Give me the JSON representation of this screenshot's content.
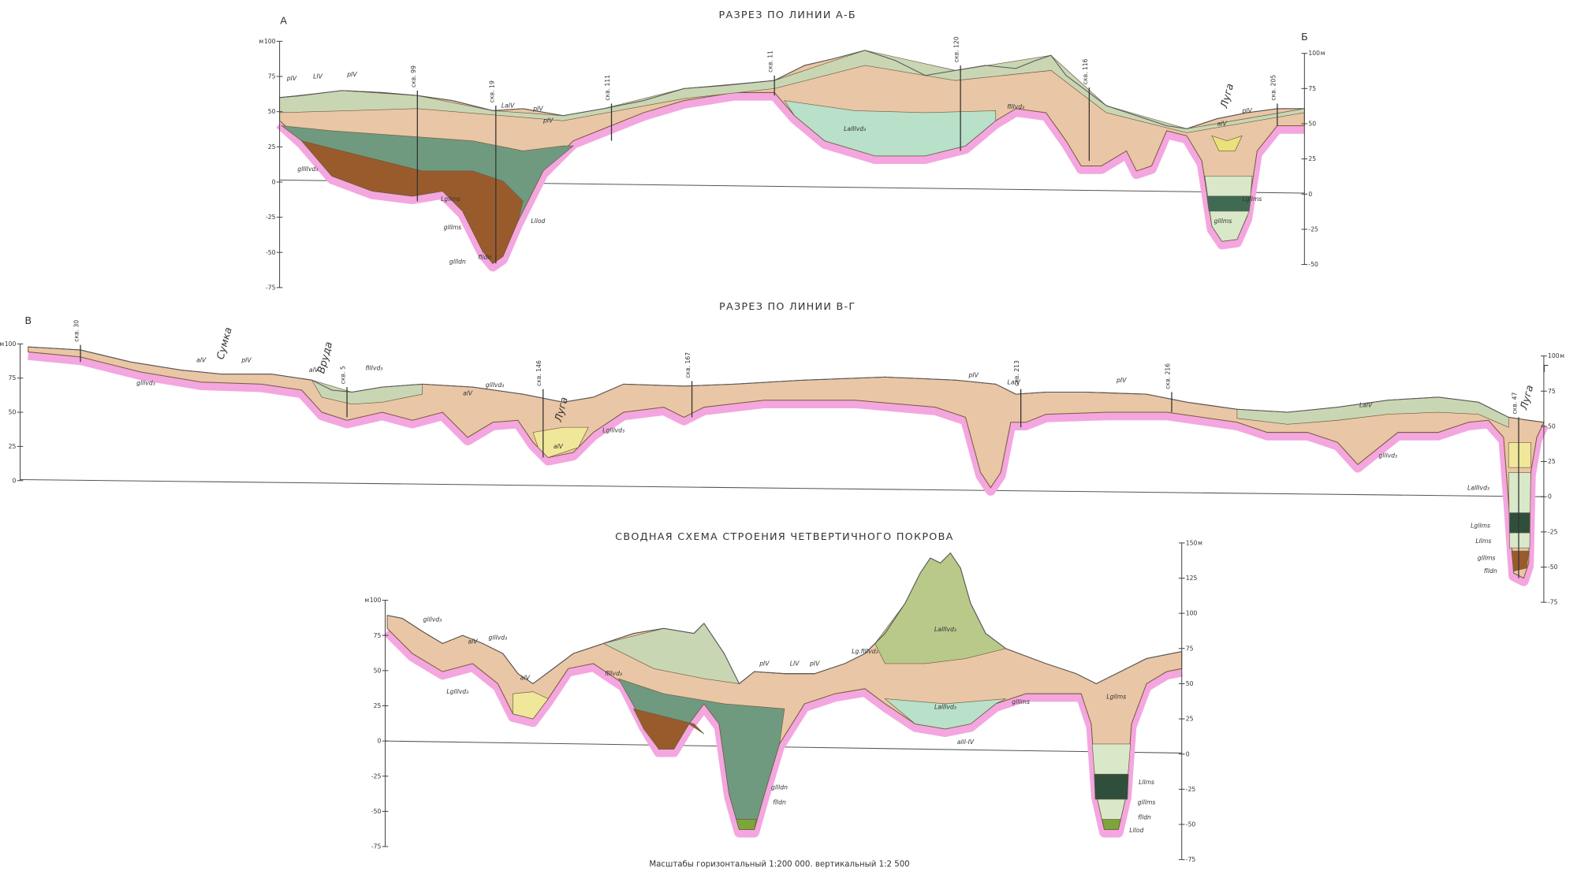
{
  "footer": "Масштабы горизонтальный 1:200 000. вертикальный 1:2 500",
  "sections": [
    {
      "title": "РАЗРЕЗ ПО ЛИНИИ А-Б",
      "corner_left": "А",
      "corner_right": "Б",
      "unit": "м",
      "left_ticks": [
        "100",
        "75",
        "50",
        "25",
        "0",
        "-25",
        "-50",
        "-75"
      ],
      "right_ticks": [
        "100",
        "75",
        "50",
        "25",
        "0",
        "-25",
        "-50"
      ],
      "wells": [
        "скв. 99",
        "скв. 19",
        "скв. 111",
        "скв. 11",
        "скв. 120",
        "скв. 116",
        "скв. 205"
      ],
      "rivers": [
        "Луга"
      ],
      "units": [
        "pIV",
        "LIV",
        "pIV",
        "LaIV",
        "pIV",
        "pIV",
        "glIIIvd₃",
        "Lgllms",
        "glllms",
        "gllldn",
        "Lllod",
        "flldn",
        "LalIIvd₃",
        "fIIIvd₃",
        "alV",
        "pIV",
        "Lgllms",
        "glllms"
      ]
    },
    {
      "title": "РАЗРЕЗ ПО ЛИНИИ В-Г",
      "corner_left": "В",
      "corner_right": "Г",
      "unit": "м",
      "left_ticks": [
        "100",
        "75",
        "50",
        "25",
        "0"
      ],
      "right_ticks": [
        "100",
        "75",
        "50",
        "25",
        "0",
        "-25",
        "-50",
        "-75"
      ],
      "wells": [
        "скв. 30",
        "скв. 5",
        "скв. 146",
        "скв. 167",
        "скв. 213",
        "скв. 216",
        "скв. 47"
      ],
      "rivers": [
        "Сумка",
        "Вруда",
        "Луга",
        "Луга"
      ],
      "units": [
        "glllvd₃",
        "alV",
        "pIV",
        "alV",
        "fIIIvd₃",
        "alV",
        "glllvd₃",
        "alV",
        "Lglllvd₃",
        "pIV",
        "LalV",
        "pIV",
        "LalV",
        "glllvd₃",
        "LalIIvd₃",
        "Lgllms",
        "Lllms",
        "glllms",
        "flldn"
      ]
    },
    {
      "title": "СВОДНАЯ СХЕМА СТРОЕНИЯ ЧЕТВЕРТИЧНОГО ПОКРОВА",
      "corner_left": "",
      "corner_right": "",
      "unit": "м",
      "left_ticks": [
        "100",
        "75",
        "50",
        "25",
        "0",
        "-25",
        "-50",
        "-75"
      ],
      "right_ticks": [
        "150",
        "125",
        "100",
        "75",
        "50",
        "25",
        "0",
        "-25",
        "-50",
        "-75"
      ],
      "wells": [],
      "rivers": [],
      "units": [
        "glllvd₃",
        "alV",
        "glllvd₃",
        "Lglllvd₃",
        "fIIIvd₃",
        "alV",
        "pIV",
        "LIV",
        "pIV",
        "Lg.fIIIvd₃",
        "LaIIIvd₃",
        "LalIIvd₃",
        "glllms",
        "alll-IV",
        "Lgllms",
        "Lllms",
        "glllms",
        "flldn",
        "Lllod",
        "gllldn",
        "flldn"
      ]
    }
  ]
}
